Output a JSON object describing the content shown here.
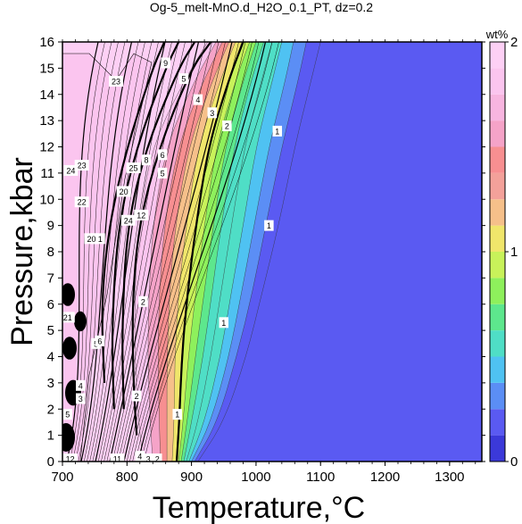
{
  "chart_data": {
    "type": "contour",
    "title": "Og-5_melt-MnO.d_H2O_0.1_PT, dz=0.2",
    "xlabel": "Temperature,°C",
    "ylabel": "Pressure,kbar",
    "xlim": [
      700,
      1350
    ],
    "ylim": [
      0,
      16
    ],
    "xticks": [
      "700",
      "800",
      "900",
      "1000",
      "1100",
      "1200",
      "1300"
    ],
    "yticks": [
      "0",
      "1",
      "2",
      "3",
      "4",
      "5",
      "6",
      "7",
      "8",
      "9",
      "10",
      "11",
      "12",
      "13",
      "14",
      "15",
      "16"
    ],
    "colorbar": {
      "label": "wt%",
      "range": [
        0,
        2
      ],
      "ticks": [
        "0",
        "1",
        "2"
      ],
      "colors": [
        "#3b39d9",
        "#5a5af2",
        "#5b8ef5",
        "#4fc2f2",
        "#4fdec6",
        "#5de78d",
        "#8ef05c",
        "#c8f25a",
        "#f0e66b",
        "#f6c08a",
        "#f3a19a",
        "#f78f91",
        "#f5a3c8",
        "#f7b5e0",
        "#fbc5ef",
        "#fdd0f5"
      ]
    },
    "bands": [
      {
        "level": 0.2,
        "points": [
          [
            910,
            0
          ],
          [
            950,
            1.5
          ],
          [
            985,
            4
          ],
          [
            1010,
            6.5
          ],
          [
            1035,
            9
          ],
          [
            1060,
            12
          ],
          [
            1085,
            14.5
          ],
          [
            1100,
            16
          ]
        ]
      },
      {
        "level": 0.3,
        "points": [
          [
            905,
            0
          ],
          [
            940,
            1.5
          ],
          [
            970,
            4
          ],
          [
            995,
            6.5
          ],
          [
            1015,
            9
          ],
          [
            1040,
            12
          ],
          [
            1065,
            14.5
          ],
          [
            1078,
            16
          ]
        ]
      },
      {
        "level": 0.4,
        "points": [
          [
            900,
            0
          ],
          [
            930,
            1.5
          ],
          [
            958,
            4
          ],
          [
            978,
            6.5
          ],
          [
            997,
            9
          ],
          [
            1020,
            12
          ],
          [
            1045,
            14.5
          ],
          [
            1058,
            16
          ]
        ]
      },
      {
        "level": 0.5,
        "points": [
          [
            896,
            0
          ],
          [
            920,
            1.5
          ],
          [
            945,
            4
          ],
          [
            962,
            6.5
          ],
          [
            980,
            9
          ],
          [
            1000,
            12
          ],
          [
            1025,
            14.5
          ],
          [
            1040,
            16
          ]
        ]
      },
      {
        "level": 0.6,
        "points": [
          [
            892,
            0
          ],
          [
            910,
            1.5
          ],
          [
            930,
            4
          ],
          [
            946,
            6.5
          ],
          [
            962,
            9
          ],
          [
            982,
            12
          ],
          [
            1008,
            14.5
          ],
          [
            1025,
            16
          ]
        ]
      },
      {
        "level": 0.7,
        "points": [
          [
            888,
            0
          ],
          [
            900,
            1.5
          ],
          [
            918,
            4
          ],
          [
            932,
            6.5
          ],
          [
            946,
            9
          ],
          [
            966,
            12
          ],
          [
            992,
            14.5
          ],
          [
            1012,
            16
          ]
        ]
      },
      {
        "level": 0.8,
        "points": [
          [
            884,
            0
          ],
          [
            893,
            1.5
          ],
          [
            906,
            4
          ],
          [
            920,
            6.5
          ],
          [
            934,
            9
          ],
          [
            952,
            12
          ],
          [
            980,
            14.5
          ],
          [
            1000,
            16
          ]
        ]
      },
      {
        "level": 0.9,
        "points": [
          [
            880,
            0
          ],
          [
            887,
            1.5
          ],
          [
            895,
            4
          ],
          [
            907,
            6.5
          ],
          [
            920,
            9
          ],
          [
            938,
            12
          ],
          [
            968,
            14.5
          ],
          [
            990,
            16
          ]
        ]
      },
      {
        "level": 1.0,
        "points": [
          [
            876,
            0
          ],
          [
            880,
            1.5
          ],
          [
            884,
            4
          ],
          [
            893,
            6.5
          ],
          [
            906,
            9
          ],
          [
            925,
            12
          ],
          [
            956,
            14.5
          ],
          [
            978,
            16
          ]
        ]
      },
      {
        "level": 1.2,
        "points": [
          [
            870,
            0
          ],
          [
            873,
            1.5
          ],
          [
            874,
            4
          ],
          [
            880,
            6.5
          ],
          [
            892,
            9
          ],
          [
            910,
            12
          ],
          [
            944,
            14.5
          ],
          [
            968,
            16
          ]
        ]
      },
      {
        "level": 1.4,
        "points": [
          [
            862,
            0
          ],
          [
            862,
            1.5
          ],
          [
            862,
            4
          ],
          [
            866,
            6.5
          ],
          [
            875,
            9
          ],
          [
            895,
            12
          ],
          [
            932,
            14.5
          ],
          [
            958,
            16
          ]
        ]
      },
      {
        "level": 1.6,
        "points": [
          [
            852,
            0
          ],
          [
            850,
            1.5
          ],
          [
            848,
            4
          ],
          [
            850,
            6.5
          ],
          [
            858,
            9
          ],
          [
            878,
            12
          ],
          [
            918,
            14.5
          ],
          [
            948,
            16
          ]
        ]
      },
      {
        "level": 1.8,
        "points": [
          [
            840,
            0
          ],
          [
            836,
            1.5
          ],
          [
            832,
            4
          ],
          [
            834,
            6.5
          ],
          [
            840,
            9
          ],
          [
            860,
            12
          ],
          [
            904,
            14.5
          ],
          [
            938,
            16
          ]
        ]
      },
      {
        "level": 2.0,
        "points": [
          [
            825,
            0
          ],
          [
            818,
            1.5
          ],
          [
            812,
            4
          ],
          [
            812,
            6.5
          ],
          [
            818,
            9
          ],
          [
            838,
            12
          ],
          [
            888,
            14.5
          ],
          [
            925,
            16
          ]
        ]
      }
    ],
    "contour_lines": [
      {
        "label": "1",
        "points": [
          [
            877,
            0
          ],
          [
            881,
            1.5
          ],
          [
            885,
            4
          ],
          [
            894,
            6.5
          ],
          [
            907,
            9
          ],
          [
            926,
            12
          ],
          [
            957,
            14.5
          ],
          [
            980,
            16
          ]
        ]
      },
      {
        "label": "2",
        "points": [
          [
            815,
            1
          ],
          [
            810,
            3
          ],
          [
            808,
            6
          ],
          [
            818,
            9
          ],
          [
            850,
            12
          ],
          [
            900,
            15
          ],
          [
            930,
            16
          ]
        ]
      },
      {
        "label": "3",
        "points": [
          [
            795,
            2
          ],
          [
            792,
            5
          ],
          [
            800,
            9
          ],
          [
            830,
            12
          ],
          [
            880,
            15
          ],
          [
            905,
            16
          ]
        ]
      },
      {
        "label": "4",
        "points": [
          [
            780,
            2
          ],
          [
            776,
            5
          ],
          [
            786,
            9
          ],
          [
            815,
            12
          ],
          [
            860,
            15
          ],
          [
            880,
            16
          ]
        ]
      },
      {
        "label": "5",
        "points": [
          [
            765,
            3
          ],
          [
            760,
            6
          ],
          [
            772,
            9
          ],
          [
            800,
            12
          ],
          [
            840,
            15
          ],
          [
            858,
            16
          ]
        ]
      }
    ],
    "contour_labels": [
      {
        "text": "1",
        "x": 878,
        "y": 1.8
      },
      {
        "text": "1",
        "x": 950,
        "y": 5.3
      },
      {
        "text": "1",
        "x": 1020,
        "y": 9.0
      },
      {
        "text": "1",
        "x": 1033,
        "y": 12.6
      },
      {
        "text": "2",
        "x": 815,
        "y": 2.5
      },
      {
        "text": "2",
        "x": 825,
        "y": 6.1
      },
      {
        "text": "2",
        "x": 955,
        "y": 12.8
      },
      {
        "text": "3",
        "x": 932,
        "y": 13.3
      },
      {
        "text": "4",
        "x": 910,
        "y": 13.8
      },
      {
        "text": "5",
        "x": 888,
        "y": 14.6
      },
      {
        "text": "5",
        "x": 855,
        "y": 11.0
      },
      {
        "text": "6",
        "x": 855,
        "y": 11.7
      },
      {
        "text": "8",
        "x": 830,
        "y": 11.5
      },
      {
        "text": "9",
        "x": 860,
        "y": 15.2
      },
      {
        "text": "12",
        "x": 822,
        "y": 9.4
      },
      {
        "text": "20",
        "x": 795,
        "y": 10.3
      },
      {
        "text": "21",
        "x": 755,
        "y": 8.5
      },
      {
        "text": "22",
        "x": 730,
        "y": 9.9
      },
      {
        "text": "23",
        "x": 730,
        "y": 11.3
      },
      {
        "text": "24",
        "x": 802,
        "y": 9.2
      },
      {
        "text": "25",
        "x": 810,
        "y": 11.2
      },
      {
        "text": "20",
        "x": 745,
        "y": 8.5
      },
      {
        "text": "21",
        "x": 708,
        "y": 5.5
      },
      {
        "text": "3",
        "x": 728,
        "y": 2.4
      },
      {
        "text": "4",
        "x": 728,
        "y": 2.9
      },
      {
        "text": "5",
        "x": 708,
        "y": 1.8
      },
      {
        "text": "11",
        "x": 785,
        "y": 0.1
      },
      {
        "text": "12",
        "x": 712,
        "y": 0.1
      },
      {
        "text": "4",
        "x": 820,
        "y": 0.2
      },
      {
        "text": "3",
        "x": 833,
        "y": 0.1
      },
      {
        "text": "2",
        "x": 847,
        "y": 0.1
      },
      {
        "text": "23",
        "x": 783,
        "y": 14.5
      },
      {
        "text": "24",
        "x": 713,
        "y": 11.1
      },
      {
        "text": "5",
        "x": 752,
        "y": 4.5
      },
      {
        "text": "6",
        "x": 758,
        "y": 4.6
      }
    ],
    "grid": false
  }
}
